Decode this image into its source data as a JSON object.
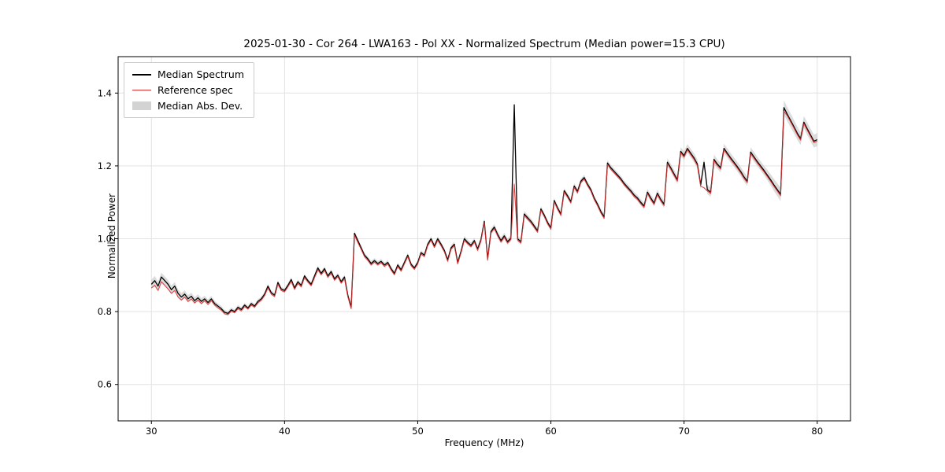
{
  "chart_data": {
    "type": "line",
    "title": "2025-01-30 - Cor 264 - LWA163 - Pol XX - Normalized Spectrum (Median power=15.3 CPU)",
    "xlabel": "Frequency (MHz)",
    "ylabel": "Normalized Power",
    "xlim": [
      27.5,
      82.5
    ],
    "ylim": [
      0.5,
      1.5
    ],
    "x_ticks": [
      30,
      40,
      50,
      60,
      70,
      80
    ],
    "x_tick_labels": [
      "30",
      "40",
      "50",
      "60",
      "70",
      "80"
    ],
    "y_ticks": [
      0.6,
      0.8,
      1.0,
      1.2,
      1.4
    ],
    "y_tick_labels": [
      "0.6",
      "0.8",
      "1.0",
      "1.2",
      "1.4"
    ],
    "grid": true,
    "legend_position": "upper left",
    "legend": [
      {
        "label": "Median Spectrum",
        "kind": "line",
        "color": "#000000"
      },
      {
        "label": "Reference spec",
        "kind": "line",
        "color": "#e03030"
      },
      {
        "label": "Median Abs. Dev.",
        "kind": "band",
        "color": "#c8c8c8"
      }
    ],
    "colors": {
      "median": "#000000",
      "reference": "#e03030",
      "mad_band": "#bfbfbf",
      "grid": "#e2e2e2",
      "spine": "#000000"
    },
    "x_start": 30.0,
    "x_step": 0.25,
    "series": [
      {
        "name": "Median Spectrum",
        "values": [
          0.875,
          0.885,
          0.87,
          0.895,
          0.885,
          0.875,
          0.86,
          0.87,
          0.85,
          0.84,
          0.848,
          0.835,
          0.842,
          0.83,
          0.838,
          0.828,
          0.835,
          0.825,
          0.835,
          0.822,
          0.815,
          0.808,
          0.798,
          0.795,
          0.805,
          0.8,
          0.812,
          0.806,
          0.818,
          0.81,
          0.822,
          0.815,
          0.828,
          0.835,
          0.848,
          0.87,
          0.852,
          0.845,
          0.88,
          0.862,
          0.858,
          0.872,
          0.888,
          0.865,
          0.882,
          0.872,
          0.898,
          0.885,
          0.875,
          0.898,
          0.92,
          0.905,
          0.918,
          0.898,
          0.91,
          0.89,
          0.9,
          0.882,
          0.895,
          0.845,
          0.812,
          1.015,
          0.995,
          0.975,
          0.955,
          0.945,
          0.932,
          0.94,
          0.932,
          0.938,
          0.928,
          0.935,
          0.918,
          0.905,
          0.928,
          0.915,
          0.935,
          0.955,
          0.93,
          0.92,
          0.935,
          0.962,
          0.955,
          0.985,
          1.0,
          0.98,
          1.0,
          0.985,
          0.968,
          0.942,
          0.975,
          0.985,
          0.935,
          0.965,
          1.0,
          0.99,
          0.982,
          0.995,
          0.972,
          0.998,
          1.048,
          0.945,
          1.02,
          1.032,
          1.012,
          0.995,
          1.008,
          0.992,
          1.002,
          1.368,
          1.0,
          0.992,
          1.068,
          1.058,
          1.048,
          1.035,
          1.022,
          1.082,
          1.065,
          1.045,
          1.03,
          1.105,
          1.085,
          1.068,
          1.132,
          1.118,
          1.102,
          1.145,
          1.13,
          1.158,
          1.168,
          1.15,
          1.135,
          1.112,
          1.095,
          1.075,
          1.06,
          1.208,
          1.195,
          1.185,
          1.175,
          1.165,
          1.152,
          1.142,
          1.132,
          1.12,
          1.112,
          1.1,
          1.09,
          1.128,
          1.112,
          1.098,
          1.125,
          1.108,
          1.095,
          1.21,
          1.195,
          1.178,
          1.162,
          1.24,
          1.228,
          1.248,
          1.235,
          1.222,
          1.205,
          1.148,
          1.21,
          1.135,
          1.128,
          1.218,
          1.205,
          1.195,
          1.248,
          1.235,
          1.222,
          1.21,
          1.198,
          1.185,
          1.17,
          1.158,
          1.238,
          1.225,
          1.212,
          1.2,
          1.188,
          1.175,
          1.162,
          1.148,
          1.135,
          1.122,
          1.36,
          1.342,
          1.325,
          1.308,
          1.29,
          1.275,
          1.32,
          1.302,
          1.285,
          1.268,
          1.272
        ]
      },
      {
        "name": "Reference spec",
        "values": [
          0.865,
          0.872,
          0.858,
          0.882,
          0.872,
          0.862,
          0.85,
          0.858,
          0.84,
          0.832,
          0.84,
          0.828,
          0.835,
          0.824,
          0.832,
          0.822,
          0.83,
          0.82,
          0.83,
          0.818,
          0.81,
          0.804,
          0.794,
          0.792,
          0.801,
          0.797,
          0.808,
          0.802,
          0.814,
          0.807,
          0.818,
          0.812,
          0.824,
          0.831,
          0.844,
          0.865,
          0.848,
          0.841,
          0.875,
          0.858,
          0.854,
          0.868,
          0.883,
          0.861,
          0.877,
          0.868,
          0.893,
          0.881,
          0.871,
          0.893,
          0.915,
          0.901,
          0.913,
          0.894,
          0.905,
          0.886,
          0.896,
          0.878,
          0.89,
          0.841,
          0.808,
          1.01,
          0.99,
          0.971,
          0.951,
          0.941,
          0.928,
          0.936,
          0.928,
          0.934,
          0.924,
          0.931,
          0.914,
          0.901,
          0.924,
          0.911,
          0.931,
          0.951,
          0.926,
          0.916,
          0.931,
          0.958,
          0.951,
          0.981,
          0.996,
          0.976,
          0.996,
          0.981,
          0.964,
          0.938,
          0.971,
          0.981,
          0.931,
          0.961,
          0.996,
          0.986,
          0.978,
          0.991,
          0.968,
          0.994,
          1.044,
          0.941,
          1.016,
          1.028,
          1.008,
          0.991,
          1.004,
          0.988,
          0.998,
          1.15,
          0.996,
          0.988,
          1.064,
          1.054,
          1.044,
          1.031,
          1.018,
          1.078,
          1.061,
          1.041,
          1.026,
          1.101,
          1.081,
          1.064,
          1.128,
          1.114,
          1.098,
          1.141,
          1.126,
          1.154,
          1.164,
          1.146,
          1.131,
          1.108,
          1.091,
          1.071,
          1.056,
          1.204,
          1.191,
          1.181,
          1.171,
          1.161,
          1.148,
          1.138,
          1.128,
          1.116,
          1.108,
          1.096,
          1.086,
          1.124,
          1.108,
          1.094,
          1.121,
          1.104,
          1.091,
          1.206,
          1.191,
          1.174,
          1.158,
          1.236,
          1.224,
          1.244,
          1.231,
          1.218,
          1.201,
          1.144,
          1.14,
          1.131,
          1.124,
          1.214,
          1.201,
          1.191,
          1.244,
          1.231,
          1.218,
          1.206,
          1.194,
          1.181,
          1.166,
          1.154,
          1.234,
          1.221,
          1.208,
          1.196,
          1.184,
          1.171,
          1.158,
          1.144,
          1.131,
          1.118,
          1.35,
          1.338,
          1.321,
          1.304,
          1.286,
          1.271,
          1.316,
          1.298,
          1.281,
          1.264,
          1.268
        ]
      }
    ],
    "mad_halfwidth_control_points": [
      [
        30,
        0.013
      ],
      [
        33,
        0.01
      ],
      [
        36,
        0.006
      ],
      [
        44,
        0.006
      ],
      [
        46,
        0.007
      ],
      [
        50,
        0.006
      ],
      [
        57,
        0.009
      ],
      [
        60,
        0.007
      ],
      [
        66,
        0.008
      ],
      [
        70,
        0.012
      ],
      [
        73,
        0.013
      ],
      [
        76,
        0.013
      ],
      [
        77.5,
        0.02
      ],
      [
        79,
        0.017
      ],
      [
        80,
        0.018
      ]
    ]
  }
}
